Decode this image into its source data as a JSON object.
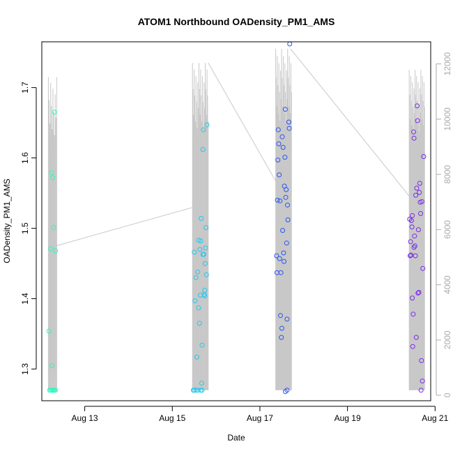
{
  "chart_data": {
    "type": "scatter",
    "title": "ATOM1 Northbound OADensity_PM1_AMS",
    "xlabel": "Date",
    "ylabel": "OADensity_PM1_AMS",
    "x_unit": "days (Aug)",
    "xlim": [
      12.02,
      20.9
    ],
    "ylim": [
      1.255,
      1.765
    ],
    "x_ticks": [
      {
        "value": 13,
        "label": "Aug 13"
      },
      {
        "value": 15,
        "label": "Aug 15"
      },
      {
        "value": 17,
        "label": "Aug 17"
      },
      {
        "value": 19,
        "label": "Aug 19"
      },
      {
        "value": 21,
        "label": "Aug 21"
      }
    ],
    "y_ticks": [
      {
        "value": 1.3,
        "label": "1.3"
      },
      {
        "value": 1.4,
        "label": "1.4"
      },
      {
        "value": 1.5,
        "label": "1.5"
      },
      {
        "value": 1.6,
        "label": "1.6"
      },
      {
        "value": 1.7,
        "label": "1.7"
      }
    ],
    "secondary_axis": {
      "label": "",
      "ylim": [
        -200,
        12800
      ],
      "ticks": [
        {
          "value": 0,
          "label": "0"
        },
        {
          "value": 2000,
          "label": "2000"
        },
        {
          "value": 4000,
          "label": "4000"
        },
        {
          "value": 6000,
          "label": "6000"
        },
        {
          "value": 8000,
          "label": "8000"
        },
        {
          "value": 10000,
          "label": "10000"
        },
        {
          "value": 12000,
          "label": "12000"
        }
      ]
    },
    "colors": {
      "trace": "#c8c8c8",
      "group1": "#33f5c0",
      "group2": "#22c8f0",
      "group3": "#2a55ee",
      "group4": "#7a2ae8",
      "secondary_axis": "#aaaaaa"
    },
    "series": [
      {
        "name": "group1",
        "color": "#33f5c0",
        "points": [
          [
            12.2,
            1.27
          ],
          [
            12.22,
            1.27
          ],
          [
            12.25,
            1.27
          ],
          [
            12.27,
            1.27
          ],
          [
            12.29,
            1.27
          ],
          [
            12.31,
            1.27
          ],
          [
            12.33,
            1.27
          ],
          [
            12.18,
            1.354
          ],
          [
            12.25,
            1.305
          ],
          [
            12.22,
            1.471
          ],
          [
            12.24,
            1.579
          ],
          [
            12.27,
            1.572
          ],
          [
            12.29,
            1.501
          ],
          [
            12.31,
            1.665
          ],
          [
            12.33,
            1.468
          ]
        ]
      },
      {
        "name": "group2",
        "color": "#22c8f0",
        "points": [
          [
            15.48,
            1.27
          ],
          [
            15.5,
            1.27
          ],
          [
            15.54,
            1.27
          ],
          [
            15.58,
            1.27
          ],
          [
            15.65,
            1.27
          ],
          [
            15.68,
            1.27
          ],
          [
            15.5,
            1.466
          ],
          [
            15.52,
            1.397
          ],
          [
            15.54,
            1.43
          ],
          [
            15.56,
            1.317
          ],
          [
            15.58,
            1.438
          ],
          [
            15.6,
            1.387
          ],
          [
            15.6,
            1.483
          ],
          [
            15.62,
            1.365
          ],
          [
            15.63,
            1.47
          ],
          [
            15.64,
            1.405
          ],
          [
            15.65,
            1.482
          ],
          [
            15.66,
            1.514
          ],
          [
            15.67,
            1.28
          ],
          [
            15.68,
            1.334
          ],
          [
            15.7,
            1.612
          ],
          [
            15.71,
            1.64
          ],
          [
            15.72,
            1.463
          ],
          [
            15.73,
            1.406
          ],
          [
            15.74,
            1.412
          ],
          [
            15.75,
            1.45
          ],
          [
            15.76,
            1.472
          ],
          [
            15.77,
            1.501
          ],
          [
            15.78,
            1.434
          ],
          [
            15.79,
            1.647
          ],
          [
            15.7,
            1.463
          ],
          [
            15.74,
            1.404
          ]
        ]
      },
      {
        "name": "group3",
        "color": "#2a55ee",
        "points": [
          [
            17.38,
            1.461
          ],
          [
            17.39,
            1.437
          ],
          [
            17.4,
            1.54
          ],
          [
            17.41,
            1.597
          ],
          [
            17.42,
            1.64
          ],
          [
            17.43,
            1.62
          ],
          [
            17.44,
            1.576
          ],
          [
            17.45,
            1.457
          ],
          [
            17.46,
            1.539
          ],
          [
            17.47,
            1.376
          ],
          [
            17.48,
            1.437
          ],
          [
            17.49,
            1.345
          ],
          [
            17.5,
            1.358
          ],
          [
            17.51,
            1.63
          ],
          [
            17.52,
            1.497
          ],
          [
            17.53,
            1.615
          ],
          [
            17.54,
            1.465
          ],
          [
            17.55,
            1.453
          ],
          [
            17.56,
            1.56
          ],
          [
            17.57,
            1.601
          ],
          [
            17.58,
            1.669
          ],
          [
            17.59,
            1.544
          ],
          [
            17.6,
            1.555
          ],
          [
            17.61,
            1.479
          ],
          [
            17.62,
            1.371
          ],
          [
            17.63,
            1.533
          ],
          [
            17.64,
            1.512
          ],
          [
            17.66,
            1.651
          ],
          [
            17.67,
            1.642
          ],
          [
            17.68,
            1.762
          ],
          [
            17.58,
            1.268
          ],
          [
            17.62,
            1.27
          ]
        ]
      },
      {
        "name": "group4",
        "color": "#7a2ae8",
        "points": [
          [
            20.42,
            1.513
          ],
          [
            20.43,
            1.461
          ],
          [
            20.44,
            1.481
          ],
          [
            20.45,
            1.462
          ],
          [
            20.46,
            1.511
          ],
          [
            20.47,
            1.502
          ],
          [
            20.48,
            1.401
          ],
          [
            20.49,
            1.332
          ],
          [
            20.5,
            1.378
          ],
          [
            20.51,
            1.637
          ],
          [
            20.52,
            1.628
          ],
          [
            20.53,
            1.489
          ],
          [
            20.54,
            1.475
          ],
          [
            20.55,
            1.461
          ],
          [
            20.56,
            1.547
          ],
          [
            20.57,
            1.345
          ],
          [
            20.58,
            1.557
          ],
          [
            20.59,
            1.674
          ],
          [
            20.6,
            1.653
          ],
          [
            20.61,
            1.408
          ],
          [
            20.62,
            1.498
          ],
          [
            20.63,
            1.409
          ],
          [
            20.64,
            1.551
          ],
          [
            20.65,
            1.564
          ],
          [
            20.66,
            1.537
          ],
          [
            20.67,
            1.521
          ],
          [
            20.68,
            1.27
          ],
          [
            20.69,
            1.312
          ],
          [
            20.7,
            1.538
          ],
          [
            20.71,
            1.283
          ],
          [
            20.72,
            1.443
          ],
          [
            20.74,
            1.602
          ],
          [
            20.52,
            1.473
          ],
          [
            20.48,
            1.518
          ]
        ]
      }
    ],
    "trace_segments": [
      {
        "from": [
          12.34,
          1.475
        ],
        "to": [
          15.48,
          1.53
        ]
      },
      {
        "from": [
          15.82,
          1.735
        ],
        "to": [
          17.38,
          1.565
        ]
      },
      {
        "from": [
          17.7,
          1.755
        ],
        "to": [
          20.42,
          1.545
        ]
      }
    ],
    "trace_spikes": [
      {
        "x_range": [
          12.17,
          12.36
        ],
        "lo": 1.27,
        "hi": 1.715,
        "count": 12
      },
      {
        "x_range": [
          15.46,
          15.82
        ],
        "lo": 1.27,
        "hi": 1.735,
        "count": 28
      },
      {
        "x_range": [
          17.36,
          17.72
        ],
        "lo": 1.27,
        "hi": 1.755,
        "count": 30
      },
      {
        "x_range": [
          20.41,
          20.76
        ],
        "lo": 1.27,
        "hi": 1.725,
        "count": 30
      }
    ]
  }
}
